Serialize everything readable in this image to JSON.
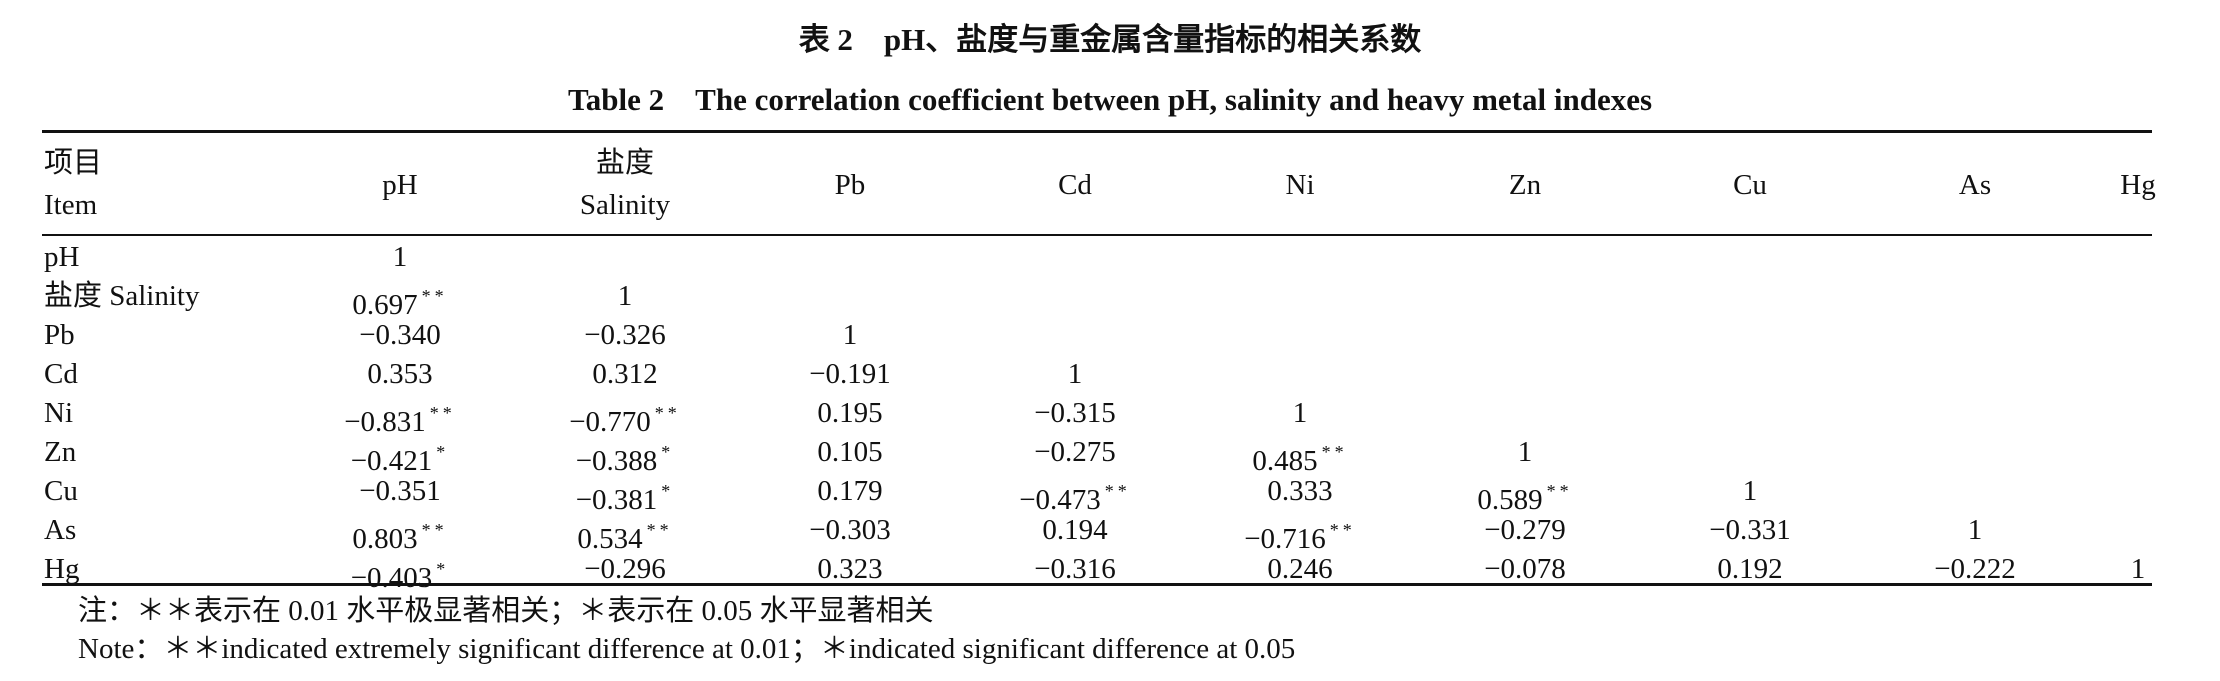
{
  "title_cn": "表 2　pH、盐度与重金属含量指标的相关系数",
  "title_en": "Table 2　The correlation coefficient between pH, salinity and heavy metal indexes",
  "header": {
    "item_cn": "项目",
    "item_en": "Item",
    "columns": [
      {
        "cn": "",
        "en": "pH"
      },
      {
        "cn": "盐度",
        "en": "Salinity"
      },
      {
        "cn": "",
        "en": "Pb"
      },
      {
        "cn": "",
        "en": "Cd"
      },
      {
        "cn": "",
        "en": "Ni"
      },
      {
        "cn": "",
        "en": "Zn"
      },
      {
        "cn": "",
        "en": "Cu"
      },
      {
        "cn": "",
        "en": "As"
      },
      {
        "cn": "",
        "en": "Hg"
      }
    ]
  },
  "rows": [
    {
      "label": "pH",
      "cells": [
        {
          "v": "1",
          "sig": ""
        }
      ]
    },
    {
      "label": "盐度 Salinity",
      "cells": [
        {
          "v": "0.697",
          "sig": "**"
        },
        {
          "v": "1",
          "sig": ""
        }
      ]
    },
    {
      "label": "Pb",
      "cells": [
        {
          "v": "−0.340",
          "sig": ""
        },
        {
          "v": "−0.326",
          "sig": ""
        },
        {
          "v": "1",
          "sig": ""
        }
      ]
    },
    {
      "label": "Cd",
      "cells": [
        {
          "v": "0.353",
          "sig": ""
        },
        {
          "v": "0.312",
          "sig": ""
        },
        {
          "v": "−0.191",
          "sig": ""
        },
        {
          "v": "1",
          "sig": ""
        }
      ]
    },
    {
      "label": "Ni",
      "cells": [
        {
          "v": "−0.831",
          "sig": "**"
        },
        {
          "v": "−0.770",
          "sig": "**"
        },
        {
          "v": "0.195",
          "sig": ""
        },
        {
          "v": "−0.315",
          "sig": ""
        },
        {
          "v": "1",
          "sig": ""
        }
      ]
    },
    {
      "label": "Zn",
      "cells": [
        {
          "v": "−0.421",
          "sig": "*"
        },
        {
          "v": "−0.388",
          "sig": "*"
        },
        {
          "v": "0.105",
          "sig": ""
        },
        {
          "v": "−0.275",
          "sig": ""
        },
        {
          "v": "0.485",
          "sig": "**"
        },
        {
          "v": "1",
          "sig": ""
        }
      ]
    },
    {
      "label": "Cu",
      "cells": [
        {
          "v": "−0.351",
          "sig": ""
        },
        {
          "v": "−0.381",
          "sig": "*"
        },
        {
          "v": "0.179",
          "sig": ""
        },
        {
          "v": "−0.473",
          "sig": "**"
        },
        {
          "v": "0.333",
          "sig": ""
        },
        {
          "v": "0.589",
          "sig": "**"
        },
        {
          "v": "1",
          "sig": ""
        }
      ]
    },
    {
      "label": "As",
      "cells": [
        {
          "v": "0.803",
          "sig": "**"
        },
        {
          "v": "0.534",
          "sig": "**"
        },
        {
          "v": "−0.303",
          "sig": ""
        },
        {
          "v": "0.194",
          "sig": ""
        },
        {
          "v": "−0.716",
          "sig": "**"
        },
        {
          "v": "−0.279",
          "sig": ""
        },
        {
          "v": "−0.331",
          "sig": ""
        },
        {
          "v": "1",
          "sig": ""
        }
      ]
    },
    {
      "label": "Hg",
      "cells": [
        {
          "v": "−0.403",
          "sig": "*"
        },
        {
          "v": "−0.296",
          "sig": ""
        },
        {
          "v": "0.323",
          "sig": ""
        },
        {
          "v": "−0.316",
          "sig": ""
        },
        {
          "v": "0.246",
          "sig": ""
        },
        {
          "v": "−0.078",
          "sig": ""
        },
        {
          "v": "0.192",
          "sig": ""
        },
        {
          "v": "−0.222",
          "sig": ""
        },
        {
          "v": "1",
          "sig": ""
        }
      ]
    }
  ],
  "notes": {
    "cn": "注：＊＊表示在 0.01 水平极显著相关；＊表示在 0.05 水平显著相关",
    "en": "Note：＊＊indicated extremely significant difference at 0.01；＊indicated significant difference at 0.05"
  }
}
